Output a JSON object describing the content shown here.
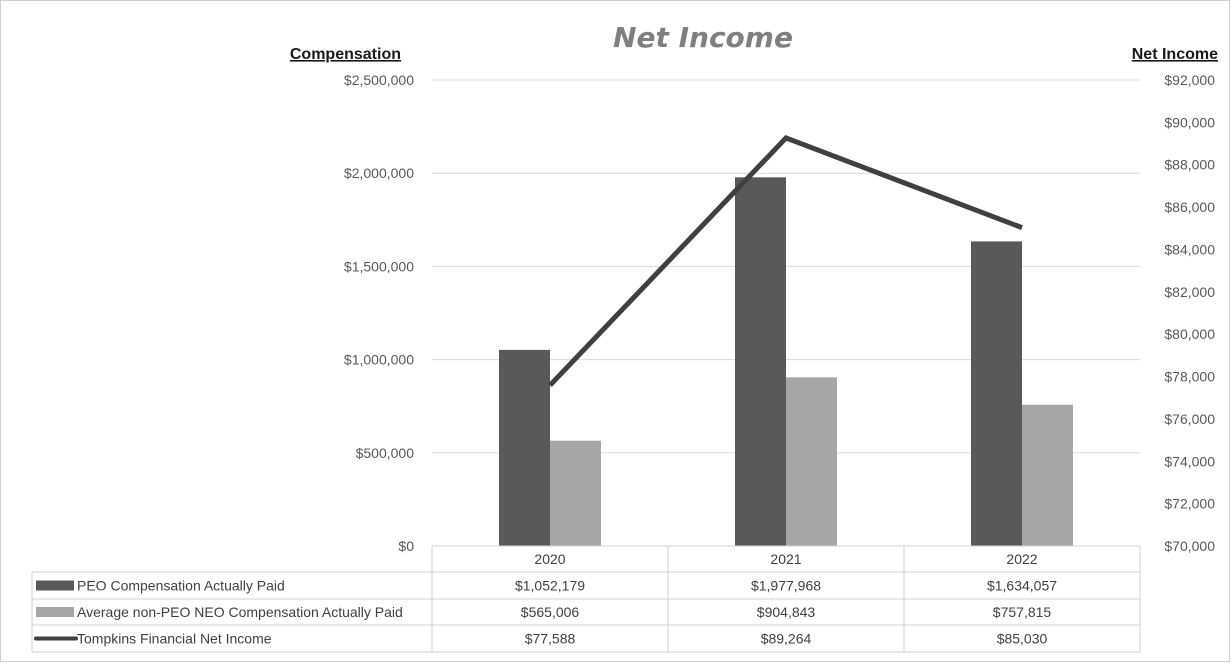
{
  "chart_data": {
    "type": "bar",
    "title": "Net Income",
    "ylabel": "Compensation",
    "y2label": "Net Income",
    "categories": [
      "2020",
      "2021",
      "2022"
    ],
    "ylim": [
      0,
      2500000
    ],
    "y2lim": [
      70000,
      92000
    ],
    "y_ticks": [
      "$0",
      "$500,000",
      "$1,000,000",
      "$1,500,000",
      "$2,000,000",
      "$2,500,000"
    ],
    "y2_ticks": [
      "$70,000",
      "$72,000",
      "$74,000",
      "$76,000",
      "$78,000",
      "$80,000",
      "$82,000",
      "$84,000",
      "$86,000",
      "$88,000",
      "$90,000",
      "$92,000"
    ],
    "grid": true,
    "legend": "data-table-left",
    "series": [
      {
        "name": "PEO Compensation Actually Paid",
        "type": "bar",
        "axis": "left",
        "color": "#595959",
        "values": [
          1052179,
          1977968,
          1634057
        ],
        "labels": [
          "$1,052,179",
          "$1,977,968",
          "$1,634,057"
        ]
      },
      {
        "name": "Average non-PEO NEO Compensation Actually Paid",
        "type": "bar",
        "axis": "left",
        "color": "#a6a6a6",
        "values": [
          565006,
          904843,
          757815
        ],
        "labels": [
          "$565,006",
          "$904,843",
          "$757,815"
        ]
      },
      {
        "name": "Tompkins Financial Net Income",
        "type": "line",
        "axis": "right",
        "color": "#404040",
        "values": [
          77588,
          89264,
          85030
        ],
        "labels": [
          "$77,588",
          "$89,264",
          "$85,030"
        ]
      }
    ]
  }
}
